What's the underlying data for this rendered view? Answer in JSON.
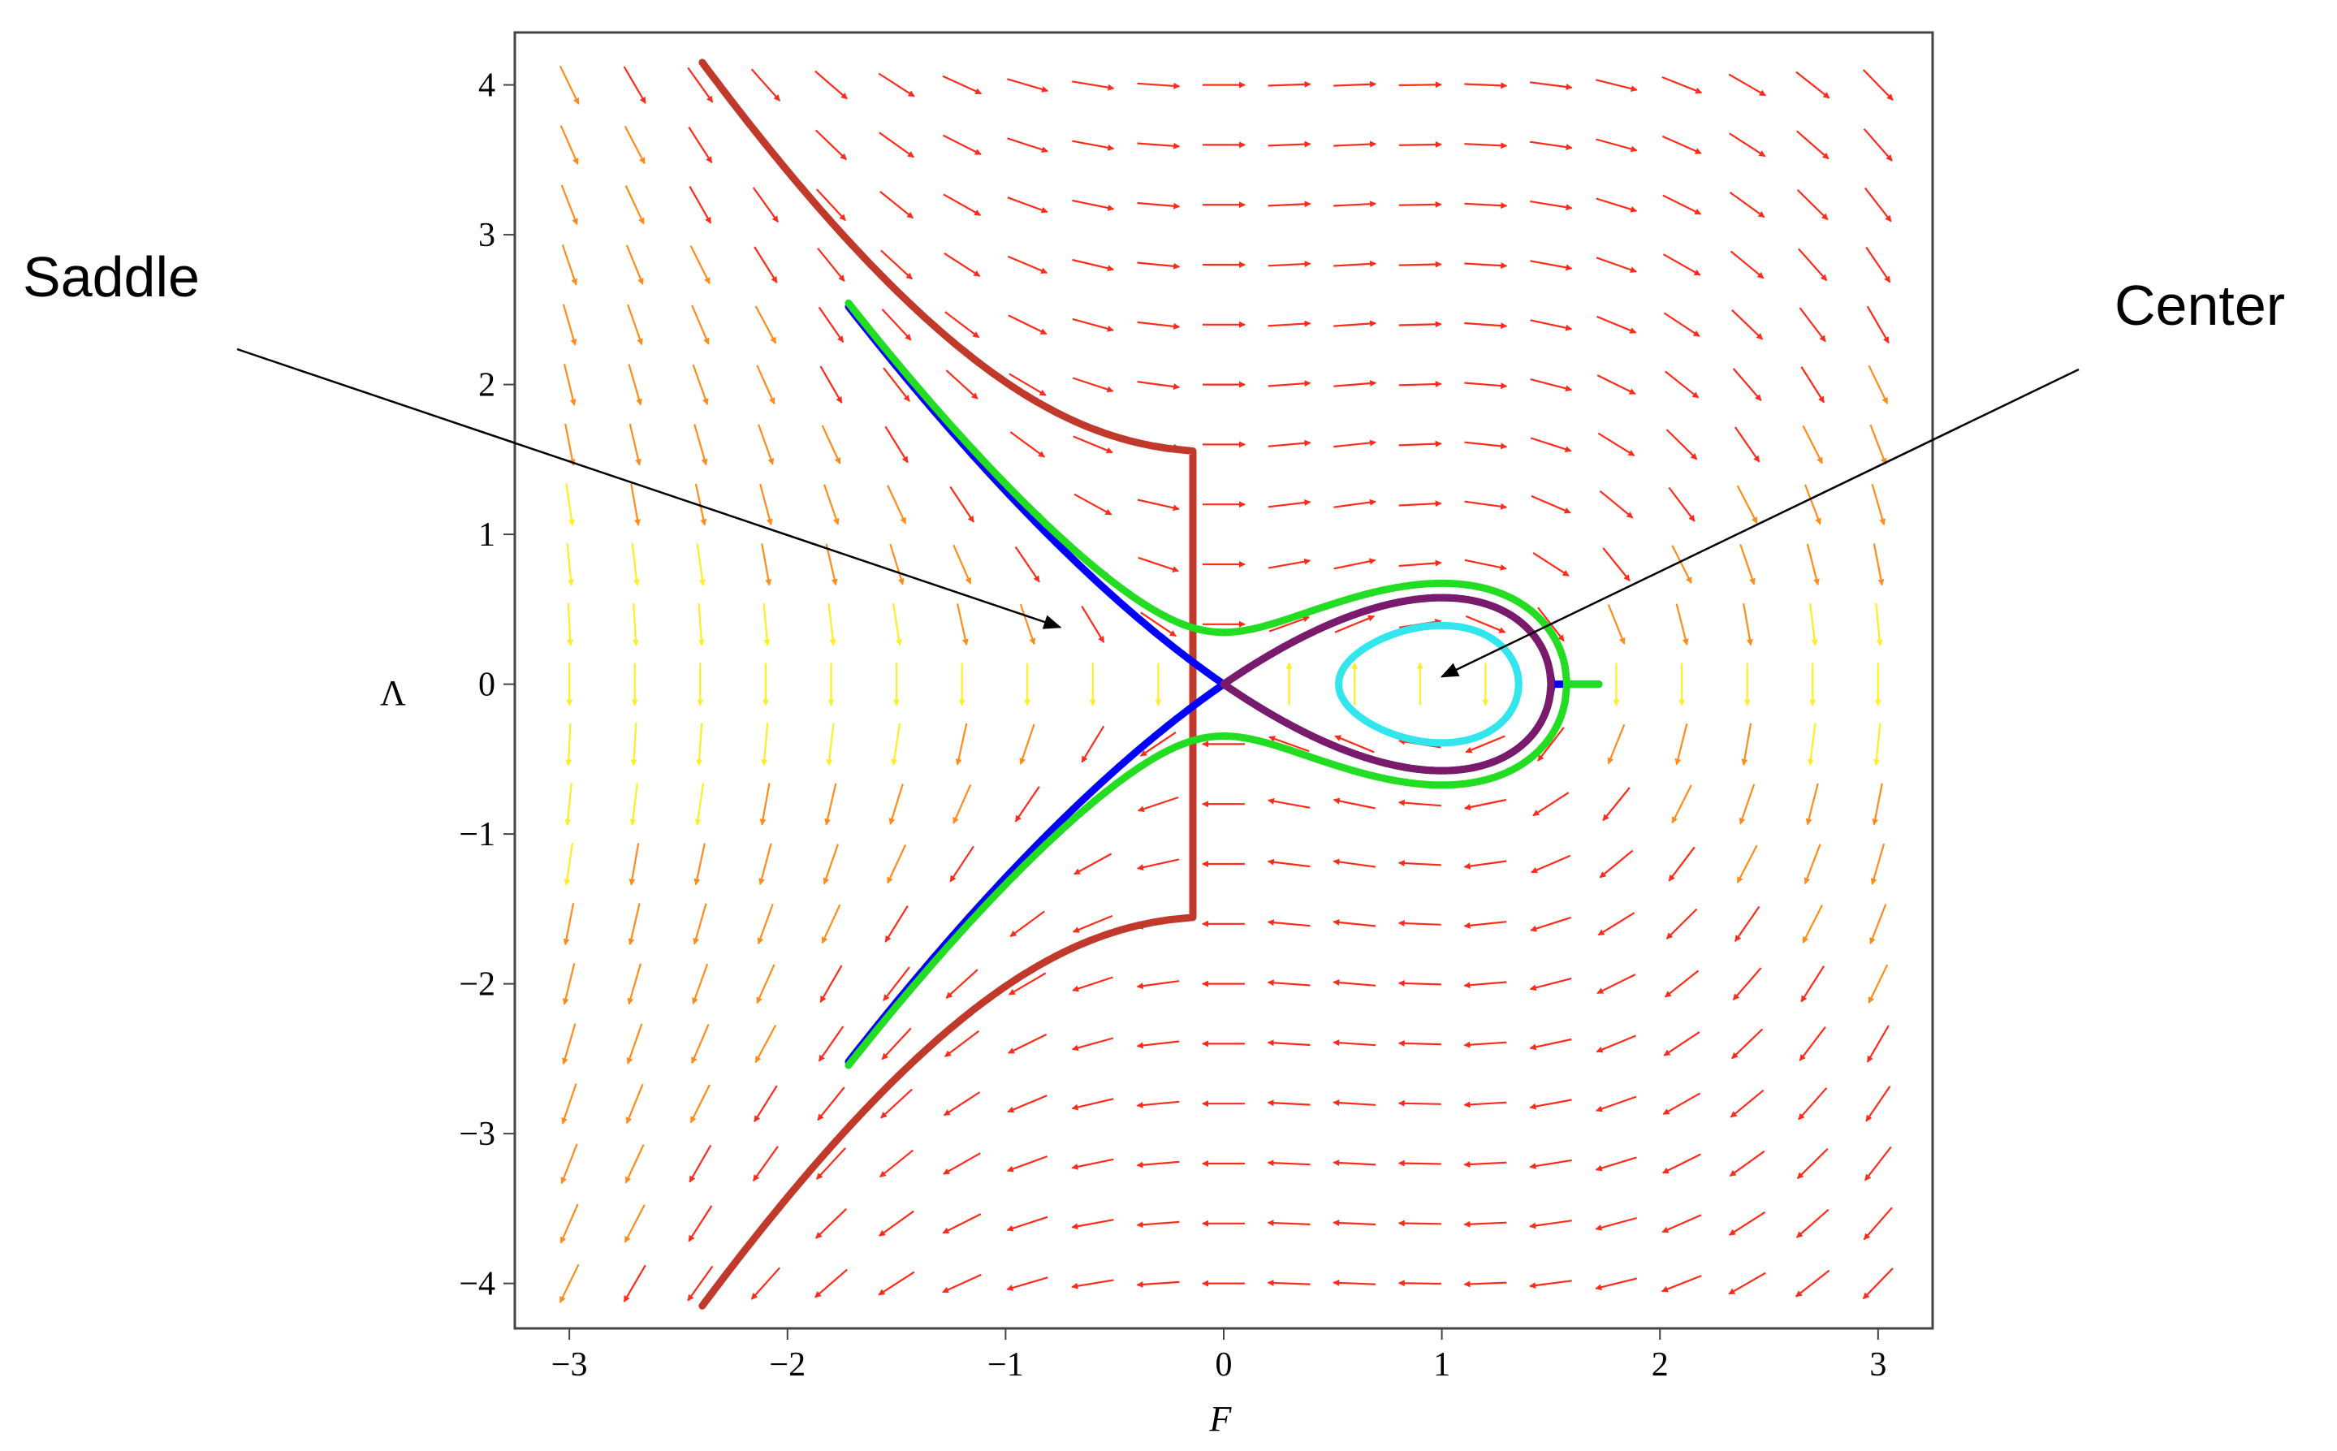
{
  "chart_data": {
    "type": "phase_portrait",
    "xlabel": "F",
    "ylabel": "Λ",
    "xlim": [
      -3.25,
      3.25
    ],
    "ylim": [
      -4.3,
      4.35
    ],
    "xticks": [
      -3,
      -2,
      -1,
      0,
      1,
      2,
      3
    ],
    "xtick_labels": [
      "−3",
      "−2",
      "−1",
      "0",
      "1",
      "2",
      "3"
    ],
    "yticks": [
      4,
      3,
      2,
      1,
      0,
      -1,
      -2,
      -3,
      -4
    ],
    "ytick_labels": [
      "4",
      "3",
      "2",
      "1",
      "0",
      "−1",
      "−2",
      "−3",
      "−4"
    ],
    "grid": false,
    "vector_field": {
      "equations": {
        "dF_dt": "Λ",
        "dΛ_dt": "F − F²"
      },
      "x_start": -3,
      "x_step": 0.3,
      "x_count": 21,
      "y_start": -4,
      "y_step": 0.4,
      "y_count": 21,
      "colors": {
        "fast": "#ff2b1a",
        "mid": "#ff8c1a",
        "slow": "#ffee22"
      }
    },
    "trajectories": [
      {
        "color": "#c0392b",
        "energy": 1.2,
        "region": "open"
      },
      {
        "color": "#0000ff",
        "energy": 0.0,
        "region": "open"
      },
      {
        "color": "#22dd22",
        "energy": 0.06,
        "region": "open"
      },
      {
        "color": "#7a1a6b",
        "energy": 0.0,
        "region": "closed"
      },
      {
        "color": "#33e6ee",
        "energy": -0.09,
        "region": "closed"
      }
    ],
    "annotations": [
      {
        "label": "Saddle",
        "point": [
          0,
          0
        ]
      },
      {
        "label": "Center",
        "point": [
          1,
          0
        ]
      }
    ]
  }
}
